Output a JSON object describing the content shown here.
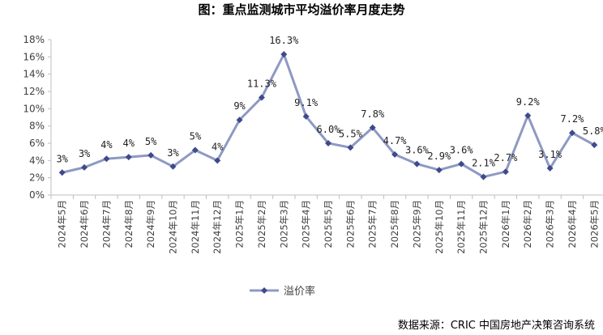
{
  "chart_data": {
    "type": "line",
    "title": "图：重点监测城市平均溢价率月度走势",
    "categories": [
      "2024年5月",
      "2024年6月",
      "2024年7月",
      "2024年8月",
      "2024年9月",
      "2024年10月",
      "2024年11月",
      "2024年12月",
      "2025年1月",
      "2025年2月",
      "2025年3月",
      "2025年4月",
      "2025年5月",
      "2025年6月",
      "2025年7月",
      "2025年8月",
      "2025年9月",
      "2025年10月",
      "2025年11月",
      "2025年12月",
      "2026年1月",
      "2026年2月",
      "2026年3月",
      "2026年4月",
      "2026年5月"
    ],
    "series": [
      {
        "name": "溢价率",
        "values": [
          2.6,
          3.2,
          4.2,
          4.4,
          4.6,
          3.3,
          5.2,
          4.0,
          8.7,
          11.3,
          16.3,
          9.1,
          6.0,
          5.5,
          7.8,
          4.7,
          3.6,
          2.9,
          3.6,
          2.1,
          2.7,
          9.2,
          3.1,
          7.2,
          5.8
        ],
        "labels": [
          "3%",
          "3%",
          "4%",
          "4%",
          "5%",
          "3%",
          "5%",
          "4%",
          "9%",
          "11.3%",
          "16.3%",
          "9.1%",
          "6.0%",
          "5.5%",
          "7.8%",
          "4.7%",
          "3.6%",
          "2.9%",
          "3.6%",
          "2.1%",
          "2.7%",
          "9.2%",
          "3.1%",
          "7.2%",
          "5.8%"
        ],
        "color": "#8E99C3",
        "marker_color": "#3F4A8C"
      }
    ],
    "ylim": [
      0,
      18
    ],
    "y_ticks": [
      "0%",
      "2%",
      "4%",
      "6%",
      "8%",
      "10%",
      "12%",
      "14%",
      "16%",
      "18%"
    ],
    "y_tick_values": [
      0,
      2,
      4,
      6,
      8,
      10,
      12,
      14,
      16,
      18
    ],
    "grid": false,
    "legend": "bottom",
    "xlabel": "",
    "ylabel": ""
  },
  "source": "数据来源：CRIC 中国房地产决策咨询系统"
}
